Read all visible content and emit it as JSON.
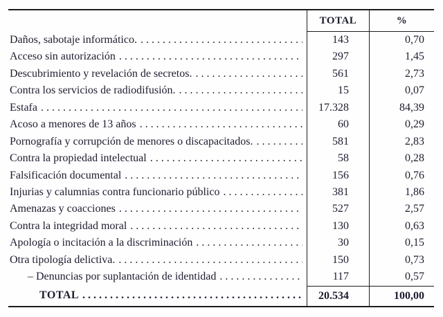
{
  "table": {
    "headers": {
      "total": "TOTAL",
      "percent": "%"
    },
    "rows": [
      {
        "label": "Daños, sabotaje informático.",
        "indent": false,
        "total": "143",
        "percent": "0,70"
      },
      {
        "label": "Acceso sin autorización",
        "indent": false,
        "total": "297",
        "percent": "1,45"
      },
      {
        "label": "Descubrimiento y revelación de secretos.",
        "indent": false,
        "total": "561",
        "percent": "2,73"
      },
      {
        "label": "Contra los servicios de radiodifusión.",
        "indent": false,
        "total": "15",
        "percent": "0,07"
      },
      {
        "label": "Estafa",
        "indent": false,
        "total": "17.328",
        "percent": "84,39"
      },
      {
        "label": "Acoso a menores de 13 años",
        "indent": false,
        "total": "60",
        "percent": "0,29"
      },
      {
        "label": "Pornografía y corrupción de menores o discapacitados.",
        "indent": false,
        "total": "581",
        "percent": "2,83"
      },
      {
        "label": "Contra la propiedad intelectual",
        "indent": false,
        "total": "58",
        "percent": "0,28"
      },
      {
        "label": "Falsificación documental",
        "indent": false,
        "total": "156",
        "percent": "0,76"
      },
      {
        "label": "Injurias y calumnias contra funcionario público",
        "indent": false,
        "total": "381",
        "percent": "1,86"
      },
      {
        "label": "Amenazas y coacciones",
        "indent": false,
        "total": "527",
        "percent": "2,57"
      },
      {
        "label": "Contra la integridad moral",
        "indent": false,
        "total": "130",
        "percent": "0,63"
      },
      {
        "label": "Apología o incitación a la discriminación",
        "indent": false,
        "total": "30",
        "percent": "0,15"
      },
      {
        "label": "Otra tipología delictiva.",
        "indent": false,
        "total": "150",
        "percent": "0,73"
      },
      {
        "label": "– Denuncias por suplantación de identidad",
        "indent": true,
        "total": "117",
        "percent": "0,57"
      }
    ],
    "total_row": {
      "label": "TOTAL",
      "total": "20.534",
      "percent": "100,00"
    }
  },
  "colors": {
    "text": "#1d1d30",
    "line": "#1c1c1c",
    "background": "#fefefe"
  }
}
